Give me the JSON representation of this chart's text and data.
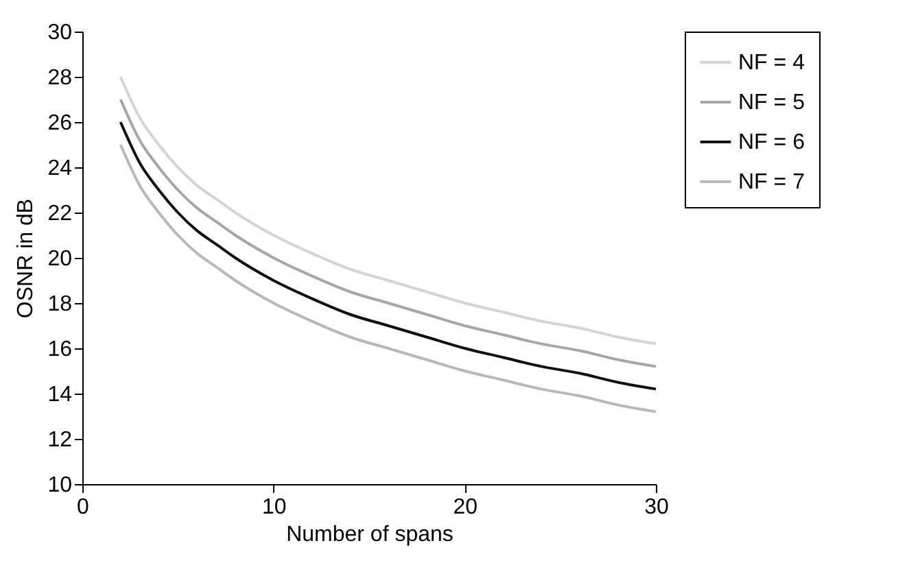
{
  "chart_data": {
    "type": "line",
    "xlabel": "Number of spans",
    "ylabel": "OSNR in dB",
    "x": [
      2,
      3,
      4,
      5,
      6,
      7,
      8,
      10,
      12,
      14,
      16,
      18,
      20,
      22,
      24,
      26,
      28,
      30
    ],
    "xlim": [
      0,
      30
    ],
    "xticks": [
      0,
      10,
      20,
      30
    ],
    "ylim": [
      10,
      30
    ],
    "yticks": [
      10,
      12,
      14,
      16,
      18,
      20,
      22,
      24,
      26,
      28,
      30
    ],
    "grid": false,
    "legend": "right",
    "marker": "none",
    "line_style": "solid",
    "series": [
      {
        "name": "NF = 4",
        "color": "#d4d4d4",
        "values": [
          28,
          26.2,
          25,
          24,
          23.2,
          22.6,
          22,
          21,
          20.2,
          19.5,
          19,
          18.5,
          18,
          17.6,
          17.2,
          16.9,
          16.5,
          16.2
        ]
      },
      {
        "name": "NF = 5",
        "color": "#a6a6a6",
        "values": [
          27,
          25.2,
          24,
          23,
          22.2,
          21.6,
          21,
          20,
          19.2,
          18.5,
          18,
          17.5,
          17,
          16.6,
          16.2,
          15.9,
          15.5,
          15.2
        ]
      },
      {
        "name": "NF = 6",
        "color": "#111111",
        "values": [
          26,
          24.2,
          23,
          22,
          21.2,
          20.6,
          20,
          19,
          18.2,
          17.5,
          17,
          16.5,
          16,
          15.6,
          15.2,
          14.9,
          14.5,
          14.2
        ]
      },
      {
        "name": "NF = 7",
        "color": "#b8b8b8",
        "values": [
          25,
          23.2,
          22,
          21,
          20.2,
          19.6,
          19,
          18,
          17.2,
          16.5,
          16,
          15.5,
          15,
          14.6,
          14.2,
          13.9,
          13.5,
          13.2
        ]
      }
    ]
  }
}
